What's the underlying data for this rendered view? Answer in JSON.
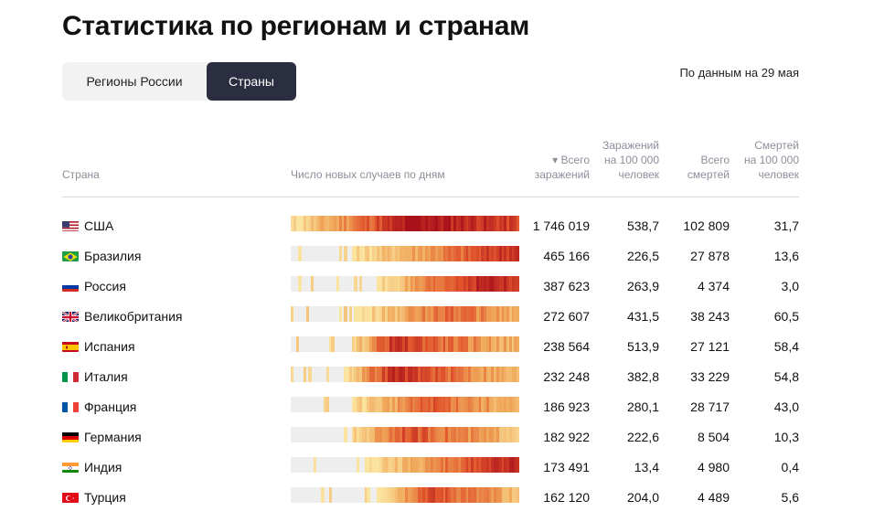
{
  "title": "Статистика по регионам и странам",
  "tabs": [
    {
      "label": "Регионы России",
      "active": false
    },
    {
      "label": "Страны",
      "active": true
    }
  ],
  "as_of": "По данным на 29 мая",
  "columns": {
    "country": "Страна",
    "daily": "Число новых случаев по дням",
    "total_cases": [
      "▾ Всего",
      "заражений"
    ],
    "cases_per_100k": [
      "Заражений",
      "на 100 000",
      "человек"
    ],
    "total_deaths": [
      "Всего",
      "смертей"
    ],
    "deaths_per_100k": [
      "Смертей",
      "на 100 000",
      "человек"
    ]
  },
  "rows": [
    {
      "flag": "flag-us-icon",
      "name": "США",
      "total": "1 746 019",
      "per100k": "538,7",
      "deaths": "102 809",
      "deaths100k": "31,7",
      "start": 0.0,
      "peak": 0.55,
      "intensity": 1.0,
      "decline": 0.7
    },
    {
      "flag": "flag-br-icon",
      "name": "Бразилия",
      "total": "465 166",
      "per100k": "226,5",
      "deaths": "27 878",
      "deaths100k": "13,6",
      "start": 0.26,
      "peak": 0.98,
      "intensity": 0.85,
      "decline": 1.0
    },
    {
      "flag": "flag-ru-icon",
      "name": "Россия",
      "total": "387 623",
      "per100k": "263,9",
      "deaths": "4 374",
      "deaths100k": "3,0",
      "start": 0.38,
      "peak": 0.85,
      "intensity": 0.9,
      "decline": 0.8
    },
    {
      "flag": "flag-gb-icon",
      "name": "Великобритания",
      "total": "272 607",
      "per100k": "431,5",
      "deaths": "38 243",
      "deaths100k": "60,5",
      "start": 0.28,
      "peak": 0.7,
      "intensity": 0.6,
      "decline": 0.35
    },
    {
      "flag": "flag-es-icon",
      "name": "Испания",
      "total": "238 564",
      "per100k": "513,9",
      "deaths": "27 121",
      "deaths100k": "58,4",
      "start": 0.26,
      "peak": 0.45,
      "intensity": 0.8,
      "decline": 0.2
    },
    {
      "flag": "flag-it-icon",
      "name": "Италия",
      "total": "232 248",
      "per100k": "382,8",
      "deaths": "33 229",
      "deaths100k": "54,8",
      "start": 0.23,
      "peak": 0.45,
      "intensity": 0.85,
      "decline": 0.15
    },
    {
      "flag": "flag-fr-icon",
      "name": "Франция",
      "total": "186 923",
      "per100k": "280,1",
      "deaths": "28 717",
      "deaths100k": "43,0",
      "start": 0.26,
      "peak": 0.62,
      "intensity": 0.65,
      "decline": 0.2
    },
    {
      "flag": "flag-de-icon",
      "name": "Германия",
      "total": "182 922",
      "per100k": "222,6",
      "deaths": "8 504",
      "deaths100k": "10,3",
      "start": 0.26,
      "peak": 0.5,
      "intensity": 0.7,
      "decline": 0.15
    },
    {
      "flag": "flag-in-icon",
      "name": "Индия",
      "total": "173 491",
      "per100k": "13,4",
      "deaths": "4 980",
      "deaths100k": "0,4",
      "start": 0.32,
      "peak": 0.98,
      "intensity": 0.9,
      "decline": 1.0
    },
    {
      "flag": "flag-tr-icon",
      "name": "Турция",
      "total": "162 120",
      "per100k": "204,0",
      "deaths": "4 489",
      "deaths100k": "5,6",
      "start": 0.38,
      "peak": 0.6,
      "intensity": 0.7,
      "decline": 0.25
    }
  ],
  "colors": {
    "low": "#fbe3a0",
    "mid": "#f0a85a",
    "high": "#e0522c",
    "peak": "#a8101a",
    "empty": "#eeeeee"
  }
}
